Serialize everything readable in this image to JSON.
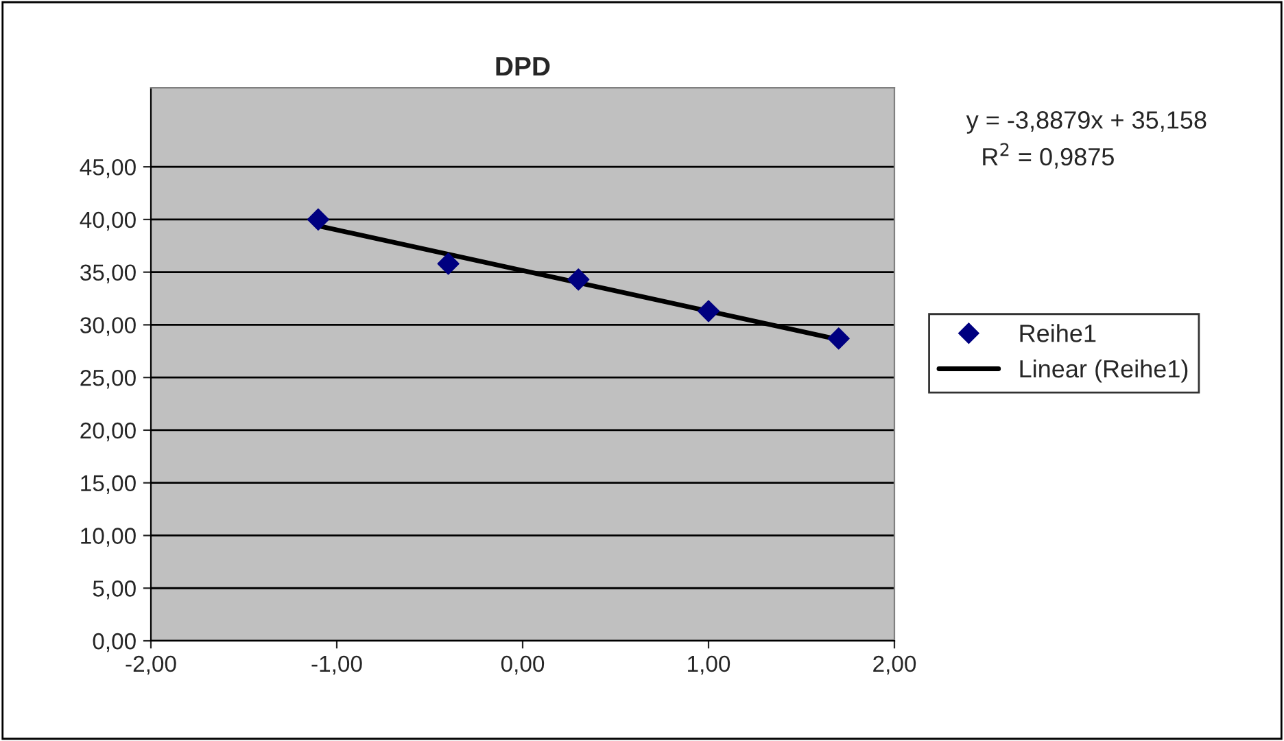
{
  "chart_data": {
    "type": "scatter",
    "title": "DPD",
    "x": [
      -1.1,
      -0.4,
      0.3,
      1.0,
      1.7
    ],
    "series": [
      {
        "name": "Reihe1",
        "color": "#000080",
        "marker": "diamond",
        "values": [
          40.0,
          35.8,
          34.3,
          31.3,
          28.7
        ]
      },
      {
        "name": "Linear (Reihe1)",
        "type": "line",
        "color": "#000000",
        "marker": "none",
        "line_style": "solid",
        "x": [
          -1.1,
          1.7
        ],
        "values": [
          39.4,
          28.6
        ]
      }
    ],
    "annotations": [
      "y = -3,8879x + 35,158",
      "R$^{2}$ = 0,9875"
    ],
    "xlim": [
      -2,
      2
    ],
    "xticks": [
      {
        "value": -2,
        "label": "-2,00"
      },
      {
        "value": -1,
        "label": "-1,00"
      },
      {
        "value": 0,
        "label": "0,00"
      },
      {
        "value": 1,
        "label": "1,00"
      },
      {
        "value": 2,
        "label": "2,00"
      }
    ],
    "ylim": [
      0,
      52.5
    ],
    "yticks": [
      {
        "value": 0,
        "label": "0,00"
      },
      {
        "value": 5,
        "label": "5,00"
      },
      {
        "value": 10,
        "label": "10,00"
      },
      {
        "value": 15,
        "label": "15,00"
      },
      {
        "value": 20,
        "label": "20,00"
      },
      {
        "value": 25,
        "label": "25,00"
      },
      {
        "value": 30,
        "label": "30,00"
      },
      {
        "value": 35,
        "label": "35,00"
      },
      {
        "value": 40,
        "label": "40,00"
      },
      {
        "value": 45,
        "label": "45,00"
      }
    ],
    "grid": "y",
    "legend": "right"
  }
}
